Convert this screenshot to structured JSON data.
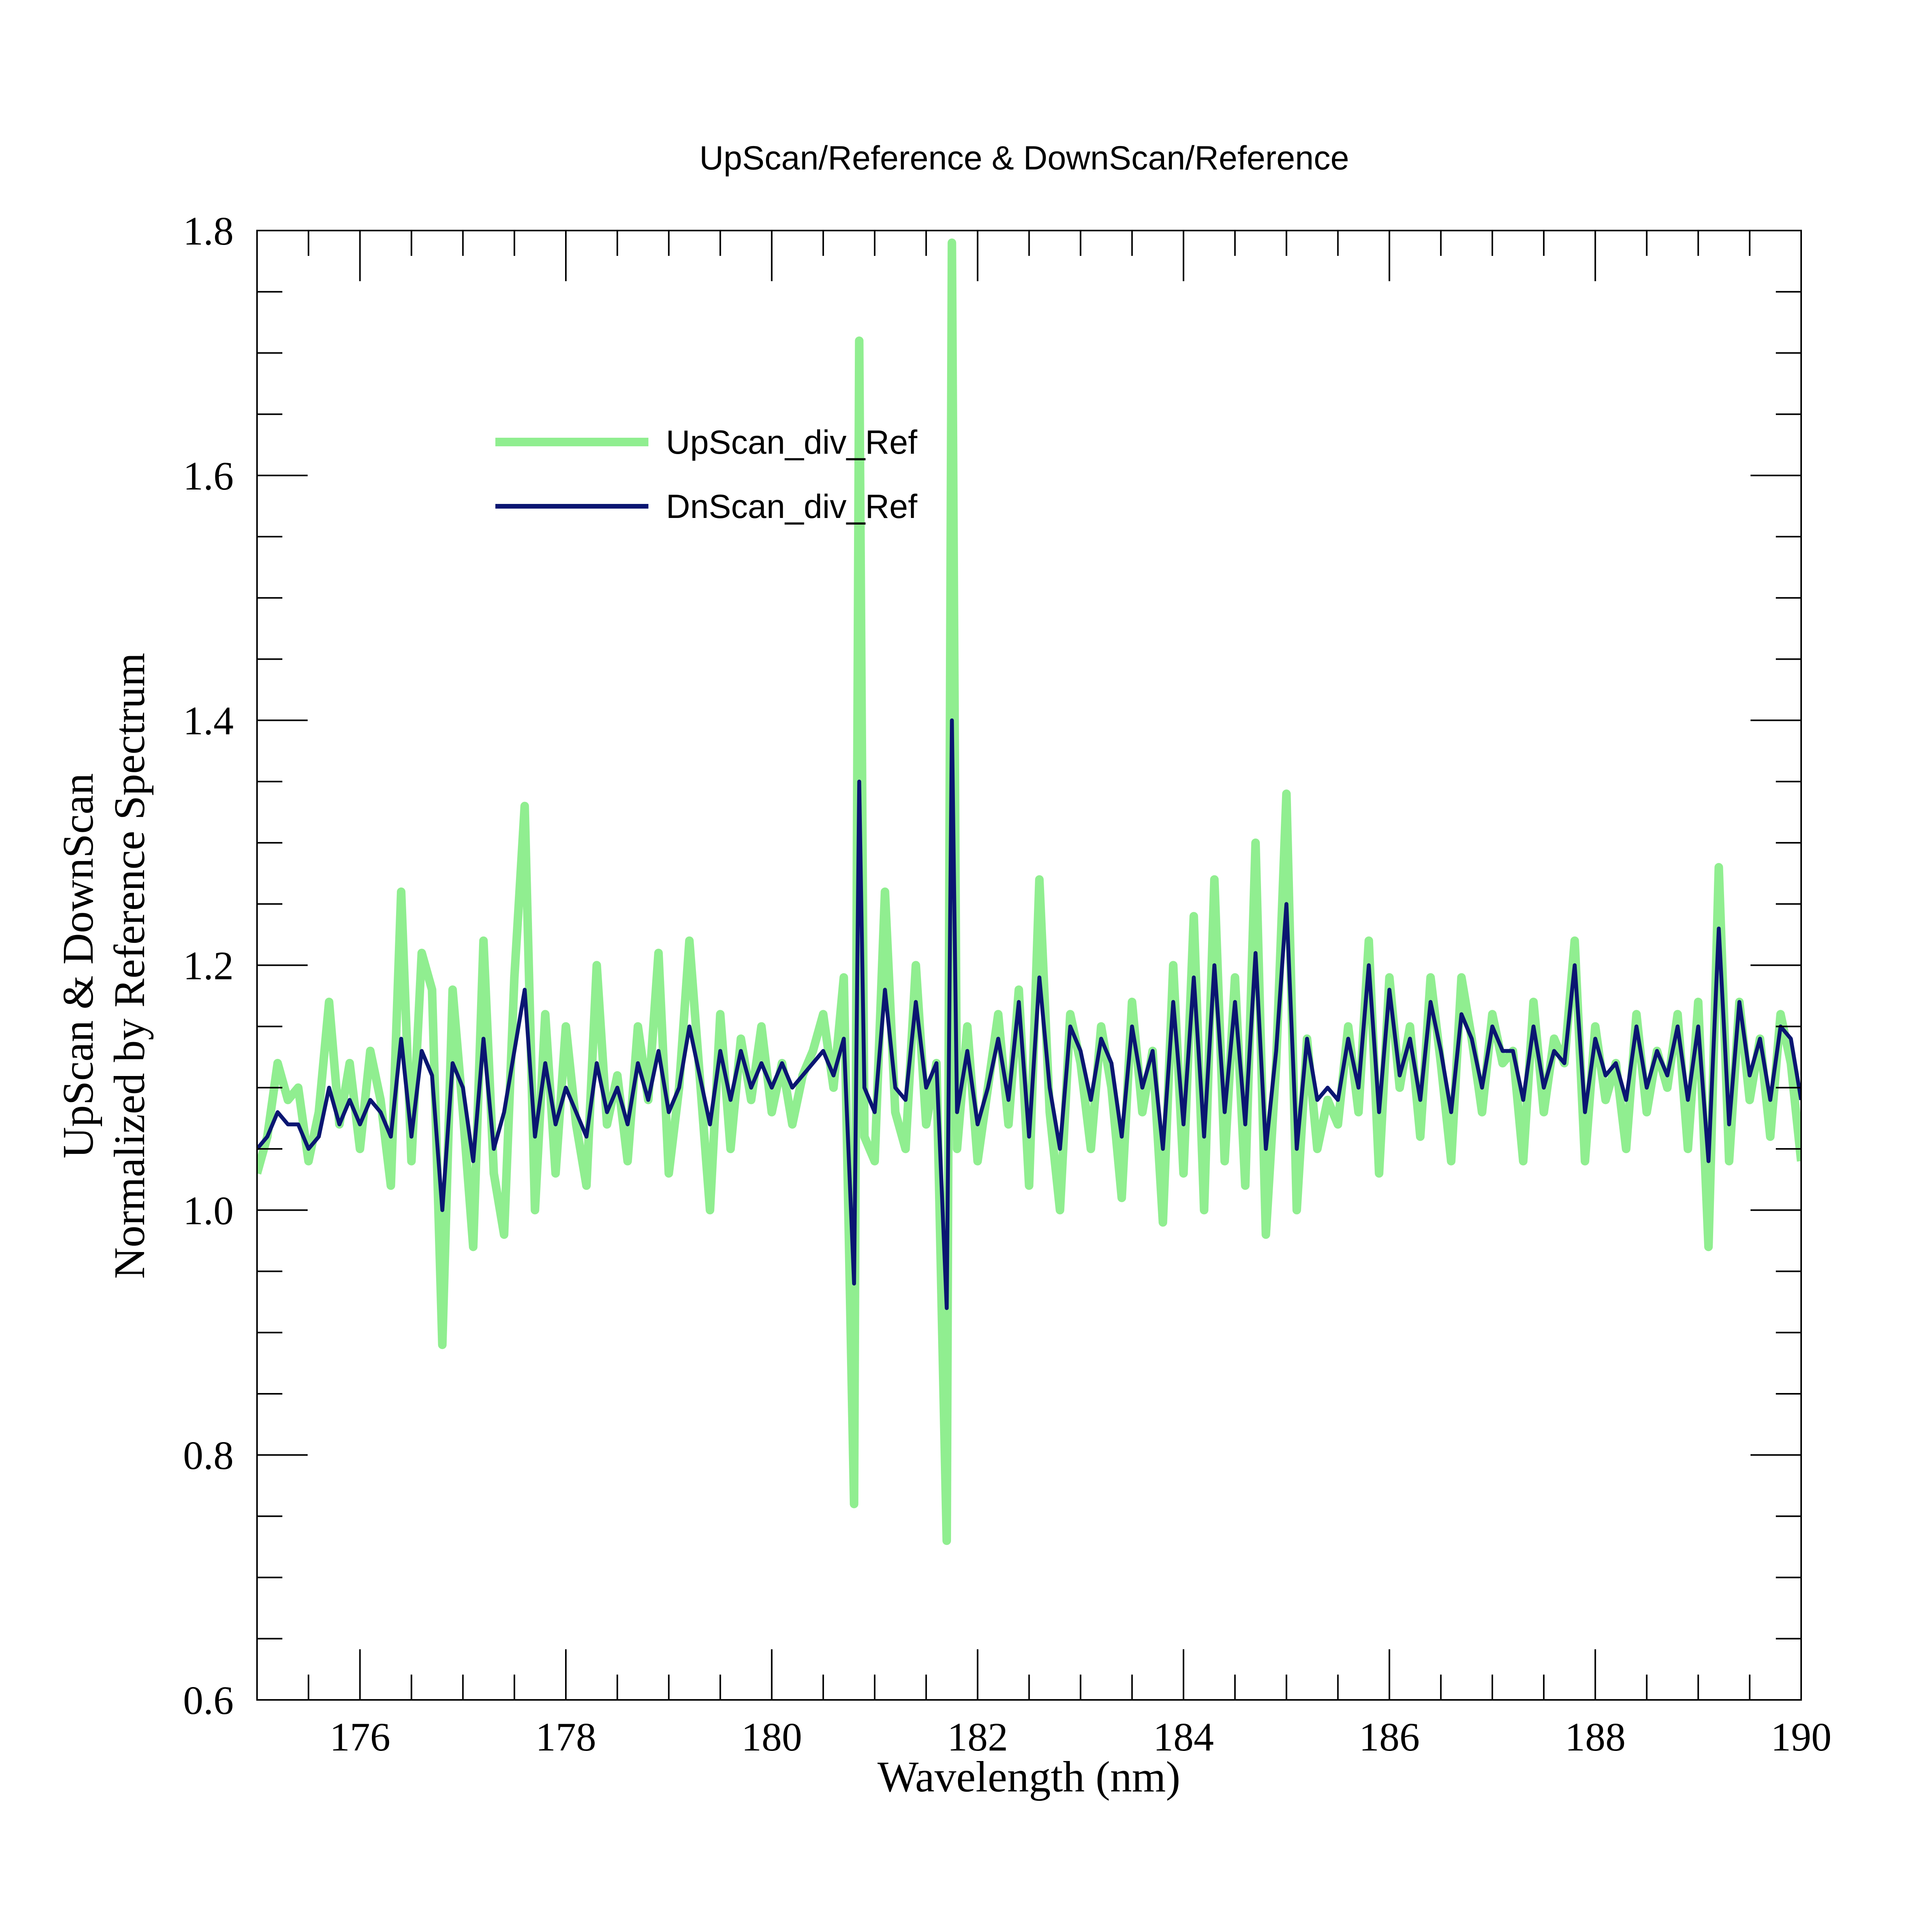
{
  "chart_data": {
    "type": "line",
    "title": "UpScan/Reference & DownScan/Reference",
    "xlabel": "Wavelength (nm)",
    "ylabel_line1": "UpScan & DownScan",
    "ylabel_line2": "Normalized by Reference Spectrum",
    "xlim": [
      175,
      190
    ],
    "ylim": [
      0.6,
      1.8
    ],
    "x_ticks": [
      176,
      178,
      180,
      182,
      184,
      186,
      188,
      190
    ],
    "x_tick_labels": [
      "176",
      "178",
      "180",
      "182",
      "184",
      "186",
      "188",
      "190"
    ],
    "y_ticks": [
      0.6,
      0.8,
      1.0,
      1.2,
      1.4,
      1.6,
      1.8
    ],
    "y_tick_labels": [
      "0.6",
      "0.8",
      "1.0",
      "1.2",
      "1.4",
      "1.6",
      "1.8"
    ],
    "grid": false,
    "legend_position": "top-left",
    "series": [
      {
        "name": "UpScan_div_Ref",
        "color": "#90ee90",
        "x": [
          175.0,
          175.1,
          175.2,
          175.3,
          175.4,
          175.5,
          175.6,
          175.7,
          175.8,
          175.9,
          176.0,
          176.1,
          176.2,
          176.3,
          176.4,
          176.5,
          176.6,
          176.7,
          176.8,
          176.9,
          177.0,
          177.1,
          177.2,
          177.3,
          177.4,
          177.5,
          177.6,
          177.7,
          177.8,
          177.9,
          178.0,
          178.1,
          178.2,
          178.3,
          178.4,
          178.5,
          178.6,
          178.7,
          178.8,
          178.9,
          179.0,
          179.1,
          179.2,
          179.3,
          179.4,
          179.5,
          179.6,
          179.7,
          179.8,
          179.9,
          180.0,
          180.1,
          180.2,
          180.3,
          180.4,
          180.5,
          180.6,
          180.7,
          180.8,
          180.85,
          180.9,
          181.0,
          181.1,
          181.2,
          181.3,
          181.4,
          181.5,
          181.6,
          181.7,
          181.75,
          181.8,
          181.9,
          182.0,
          182.1,
          182.2,
          182.3,
          182.4,
          182.5,
          182.6,
          182.7,
          182.8,
          182.9,
          183.0,
          183.1,
          183.2,
          183.3,
          183.4,
          183.5,
          183.6,
          183.7,
          183.8,
          183.9,
          184.0,
          184.1,
          184.2,
          184.3,
          184.4,
          184.5,
          184.6,
          184.7,
          184.8,
          184.9,
          185.0,
          185.1,
          185.2,
          185.3,
          185.4,
          185.5,
          185.6,
          185.7,
          185.8,
          185.9,
          186.0,
          186.1,
          186.2,
          186.3,
          186.4,
          186.5,
          186.6,
          186.7,
          186.8,
          186.9,
          187.0,
          187.1,
          187.2,
          187.3,
          187.4,
          187.5,
          187.6,
          187.7,
          187.8,
          187.9,
          188.0,
          188.1,
          188.2,
          188.3,
          188.4,
          188.5,
          188.6,
          188.7,
          188.8,
          188.9,
          189.0,
          189.1,
          189.2,
          189.3,
          189.4,
          189.5,
          189.6,
          189.7,
          189.8,
          189.9,
          190.0
        ],
        "y": [
          1.03,
          1.06,
          1.12,
          1.09,
          1.1,
          1.04,
          1.08,
          1.17,
          1.07,
          1.12,
          1.05,
          1.13,
          1.09,
          1.02,
          1.26,
          1.04,
          1.21,
          1.18,
          0.89,
          1.18,
          1.08,
          0.97,
          1.22,
          1.03,
          0.98,
          1.19,
          1.33,
          1.0,
          1.16,
          1.03,
          1.15,
          1.07,
          1.02,
          1.2,
          1.07,
          1.11,
          1.04,
          1.15,
          1.09,
          1.21,
          1.03,
          1.1,
          1.22,
          1.11,
          1.0,
          1.16,
          1.05,
          1.14,
          1.09,
          1.15,
          1.08,
          1.12,
          1.07,
          1.11,
          1.13,
          1.16,
          1.1,
          1.19,
          0.76,
          1.71,
          1.06,
          1.04,
          1.26,
          1.08,
          1.05,
          1.2,
          1.07,
          1.12,
          0.73,
          1.79,
          1.05,
          1.15,
          1.04,
          1.1,
          1.16,
          1.07,
          1.18,
          1.02,
          1.27,
          1.08,
          1.0,
          1.16,
          1.12,
          1.05,
          1.15,
          1.1,
          1.01,
          1.17,
          1.08,
          1.13,
          0.99,
          1.2,
          1.03,
          1.24,
          1.0,
          1.27,
          1.04,
          1.19,
          1.02,
          1.3,
          0.98,
          1.12,
          1.34,
          1.0,
          1.14,
          1.05,
          1.09,
          1.07,
          1.15,
          1.08,
          1.22,
          1.03,
          1.19,
          1.1,
          1.15,
          1.06,
          1.19,
          1.12,
          1.04,
          1.19,
          1.14,
          1.08,
          1.16,
          1.12,
          1.13,
          1.04,
          1.17,
          1.08,
          1.14,
          1.12,
          1.22,
          1.04,
          1.15,
          1.09,
          1.12,
          1.05,
          1.16,
          1.08,
          1.13,
          1.1,
          1.16,
          1.05,
          1.17,
          0.97,
          1.28,
          1.04,
          1.17,
          1.09,
          1.14,
          1.06,
          1.16,
          1.12,
          1.04
        ]
      },
      {
        "name": "DnScan_div_Ref",
        "color": "#0a1672",
        "x": [
          175.0,
          175.1,
          175.2,
          175.3,
          175.4,
          175.5,
          175.6,
          175.7,
          175.8,
          175.9,
          176.0,
          176.1,
          176.2,
          176.3,
          176.4,
          176.5,
          176.6,
          176.7,
          176.8,
          176.9,
          177.0,
          177.1,
          177.2,
          177.3,
          177.4,
          177.5,
          177.6,
          177.7,
          177.8,
          177.9,
          178.0,
          178.1,
          178.2,
          178.3,
          178.4,
          178.5,
          178.6,
          178.7,
          178.8,
          178.9,
          179.0,
          179.1,
          179.2,
          179.3,
          179.4,
          179.5,
          179.6,
          179.7,
          179.8,
          179.9,
          180.0,
          180.1,
          180.2,
          180.3,
          180.4,
          180.5,
          180.6,
          180.7,
          180.8,
          180.85,
          180.9,
          181.0,
          181.1,
          181.2,
          181.3,
          181.4,
          181.5,
          181.6,
          181.7,
          181.75,
          181.8,
          181.9,
          182.0,
          182.1,
          182.2,
          182.3,
          182.4,
          182.5,
          182.6,
          182.7,
          182.8,
          182.9,
          183.0,
          183.1,
          183.2,
          183.3,
          183.4,
          183.5,
          183.6,
          183.7,
          183.8,
          183.9,
          184.0,
          184.1,
          184.2,
          184.3,
          184.4,
          184.5,
          184.6,
          184.7,
          184.8,
          184.9,
          185.0,
          185.1,
          185.2,
          185.3,
          185.4,
          185.5,
          185.6,
          185.7,
          185.8,
          185.9,
          186.0,
          186.1,
          186.2,
          186.3,
          186.4,
          186.5,
          186.6,
          186.7,
          186.8,
          186.9,
          187.0,
          187.1,
          187.2,
          187.3,
          187.4,
          187.5,
          187.6,
          187.7,
          187.8,
          187.9,
          188.0,
          188.1,
          188.2,
          188.3,
          188.4,
          188.5,
          188.6,
          188.7,
          188.8,
          188.9,
          189.0,
          189.1,
          189.2,
          189.3,
          189.4,
          189.5,
          189.6,
          189.7,
          189.8,
          189.9,
          190.0
        ],
        "y": [
          1.05,
          1.06,
          1.08,
          1.07,
          1.07,
          1.05,
          1.06,
          1.1,
          1.07,
          1.09,
          1.07,
          1.09,
          1.08,
          1.06,
          1.14,
          1.06,
          1.13,
          1.11,
          1.0,
          1.12,
          1.1,
          1.04,
          1.14,
          1.05,
          1.08,
          1.13,
          1.18,
          1.06,
          1.12,
          1.07,
          1.1,
          1.08,
          1.06,
          1.12,
          1.08,
          1.1,
          1.07,
          1.12,
          1.09,
          1.13,
          1.08,
          1.1,
          1.15,
          1.11,
          1.07,
          1.13,
          1.09,
          1.13,
          1.1,
          1.12,
          1.1,
          1.12,
          1.1,
          1.11,
          1.12,
          1.13,
          1.11,
          1.14,
          0.94,
          1.35,
          1.1,
          1.08,
          1.18,
          1.1,
          1.09,
          1.17,
          1.1,
          1.12,
          0.92,
          1.4,
          1.08,
          1.13,
          1.07,
          1.1,
          1.14,
          1.09,
          1.17,
          1.06,
          1.19,
          1.1,
          1.05,
          1.15,
          1.13,
          1.09,
          1.14,
          1.12,
          1.06,
          1.15,
          1.1,
          1.13,
          1.05,
          1.17,
          1.07,
          1.19,
          1.06,
          1.2,
          1.08,
          1.17,
          1.07,
          1.21,
          1.05,
          1.13,
          1.25,
          1.05,
          1.14,
          1.09,
          1.1,
          1.09,
          1.14,
          1.1,
          1.2,
          1.08,
          1.18,
          1.11,
          1.14,
          1.09,
          1.17,
          1.13,
          1.08,
          1.16,
          1.14,
          1.1,
          1.15,
          1.13,
          1.13,
          1.09,
          1.15,
          1.1,
          1.13,
          1.12,
          1.2,
          1.08,
          1.14,
          1.11,
          1.12,
          1.09,
          1.15,
          1.1,
          1.13,
          1.11,
          1.15,
          1.09,
          1.15,
          1.04,
          1.23,
          1.07,
          1.17,
          1.11,
          1.14,
          1.09,
          1.15,
          1.14,
          1.09
        ]
      }
    ]
  }
}
